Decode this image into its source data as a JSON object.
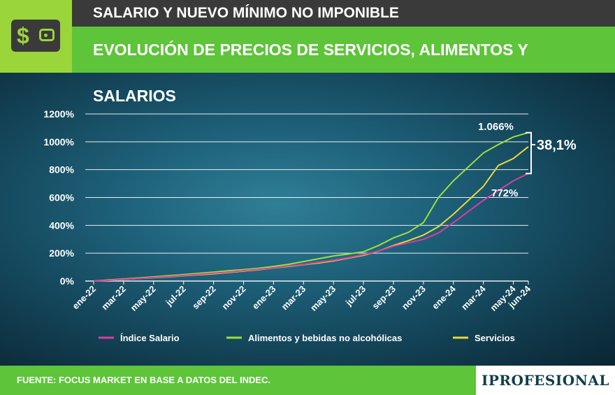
{
  "header": {
    "kicker": "SALARIO Y NUEVO MÍNIMO NO IMPONIBLE",
    "title": "EVOLUCIÓN DE PRECIOS DE SERVICIOS, ALIMENTOS Y SALARIOS",
    "icon": "wallet-dollar-icon"
  },
  "footer": {
    "source": "FUENTE: FOCUS MARKET EN BASE A DATOS DEL INDEC.",
    "brand": "IPROFESIONAL"
  },
  "chart_data": {
    "type": "line",
    "x": [
      "ene-22",
      "feb-22",
      "mar-22",
      "abr-22",
      "may-22",
      "jun-22",
      "jul-22",
      "ago-22",
      "sep-22",
      "oct-22",
      "nov-22",
      "dic-22",
      "ene-23",
      "feb-23",
      "mar-23",
      "abr-23",
      "may-23",
      "jun-23",
      "jul-23",
      "ago-23",
      "sep-23",
      "oct-23",
      "nov-23",
      "dic-23",
      "ene-24",
      "feb-24",
      "mar-24",
      "abr-24",
      "may-24",
      "jun-24"
    ],
    "tick_labels": [
      "ene-22",
      "mar-22",
      "may-22",
      "jul-22",
      "sep-22",
      "nov-22",
      "ene-23",
      "mar-23",
      "may-23",
      "jul-23",
      "sep-23",
      "nov-23",
      "ene-24",
      "mar-24",
      "may-24",
      "jun-24"
    ],
    "y_ticks": [
      "0%",
      "200%",
      "400%",
      "600%",
      "800%",
      "1000%",
      "1200%"
    ],
    "ylim": [
      0,
      1200
    ],
    "grid": true,
    "legend_position": "bottom",
    "series": [
      {
        "name": "Índice Salario",
        "color": "#d63fa0",
        "values": [
          0,
          5,
          12,
          18,
          25,
          32,
          40,
          48,
          56,
          65,
          75,
          85,
          95,
          108,
          120,
          135,
          150,
          168,
          190,
          215,
          250,
          275,
          300,
          345,
          420,
          500,
          580,
          650,
          720,
          772
        ]
      },
      {
        "name": "Alimentos y bebidas no alcohólicas",
        "color": "#9be03a",
        "values": [
          0,
          8,
          15,
          22,
          30,
          38,
          46,
          55,
          64,
          74,
          82,
          92,
          105,
          120,
          140,
          160,
          180,
          195,
          210,
          255,
          310,
          350,
          420,
          600,
          720,
          820,
          920,
          980,
          1035,
          1066
        ]
      },
      {
        "name": "Servicios",
        "color": "#e8d83a",
        "values": [
          0,
          6,
          12,
          18,
          24,
          30,
          38,
          45,
          52,
          62,
          72,
          82,
          94,
          105,
          118,
          130,
          145,
          165,
          185,
          215,
          255,
          290,
          330,
          390,
          480,
          580,
          680,
          830,
          880,
          965
        ]
      }
    ],
    "annotations": [
      {
        "text": "1.066%",
        "x": "may-24",
        "y": 1066
      },
      {
        "text": "772%",
        "x": "may-24",
        "y": 772
      },
      {
        "text": "38,1%",
        "note": "bracket"
      }
    ]
  }
}
